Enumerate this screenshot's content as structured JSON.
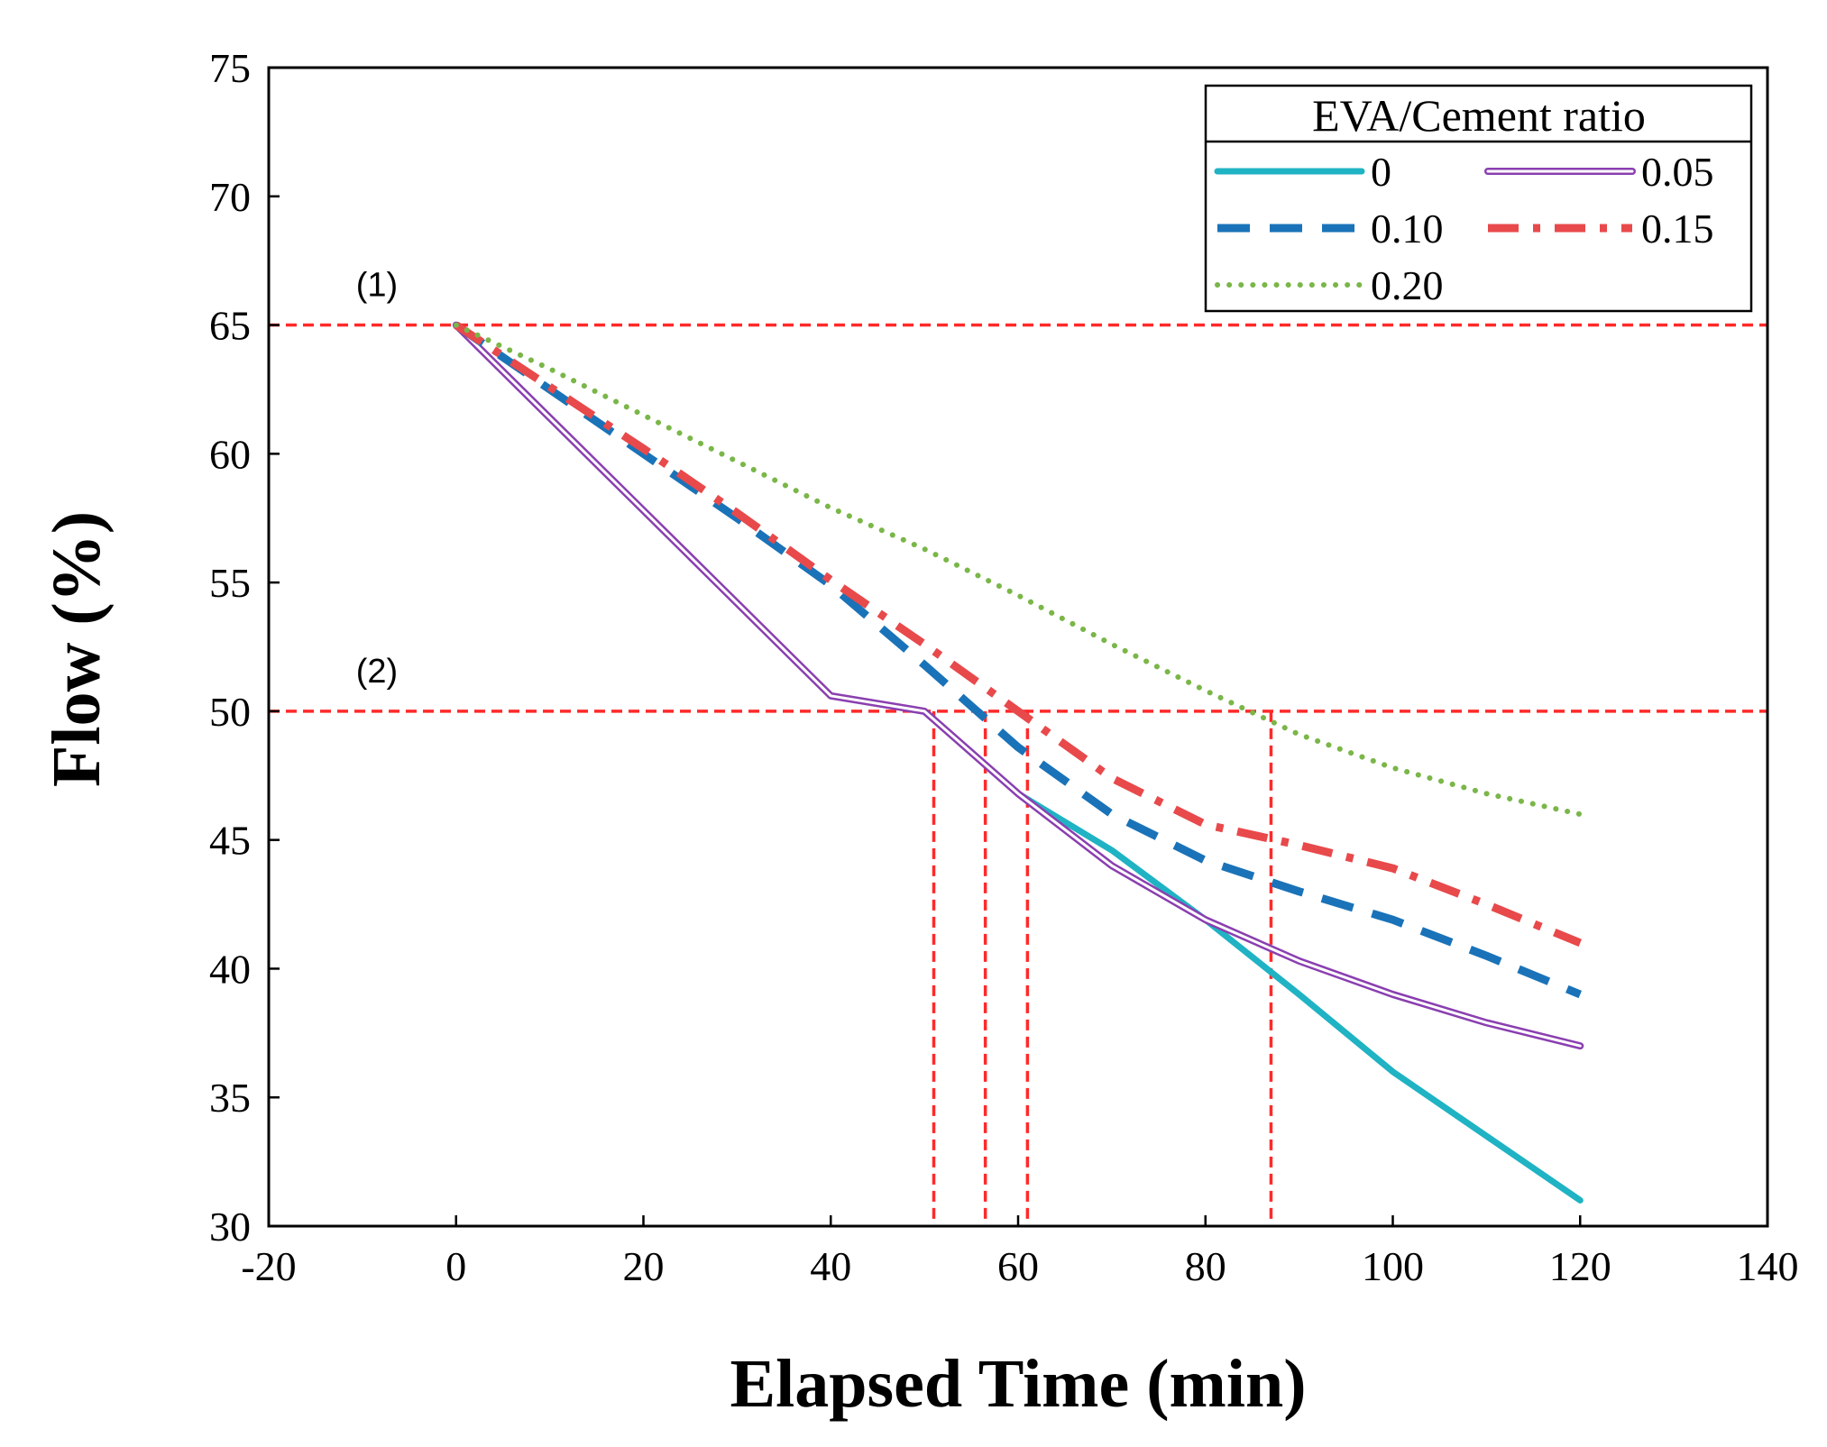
{
  "chart_data": {
    "type": "line",
    "xlabel": "Elapsed Time (min)",
    "ylabel": "Flow (%)",
    "xlim": [
      -20,
      140
    ],
    "ylim": [
      30,
      75
    ],
    "xticks": [
      -20,
      0,
      20,
      40,
      60,
      80,
      100,
      120,
      140
    ],
    "yticks": [
      30,
      35,
      40,
      45,
      50,
      55,
      60,
      65,
      70,
      75
    ],
    "grid": false,
    "legend": {
      "title": "EVA/Cement  ratio",
      "position": "top-right"
    },
    "series": [
      {
        "name": "0",
        "color": "#1fb3c4",
        "style": "solid",
        "x": [
          0,
          10,
          20,
          30,
          40,
          50,
          60,
          70,
          80,
          90,
          100,
          110,
          120
        ],
        "y": [
          65,
          61.4,
          57.8,
          54.2,
          50.6,
          50.0,
          46.8,
          44.6,
          41.9,
          39.0,
          36.0,
          33.5,
          31.0
        ]
      },
      {
        "name": "0.05",
        "color": "#8a3fb0",
        "style": "double",
        "x": [
          0,
          10,
          20,
          30,
          40,
          50,
          60,
          70,
          80,
          90,
          100,
          110,
          120
        ],
        "y": [
          65,
          61.4,
          57.8,
          54.2,
          50.6,
          50.0,
          46.8,
          44.0,
          41.9,
          40.3,
          39.0,
          37.9,
          37.0
        ]
      },
      {
        "name": "0.10",
        "color": "#1a73b8",
        "style": "dashed",
        "x": [
          0,
          10,
          20,
          30,
          40,
          50,
          60,
          70,
          80,
          90,
          100,
          110,
          120
        ],
        "y": [
          65,
          62.5,
          60.0,
          57.5,
          54.9,
          51.8,
          48.6,
          46.0,
          44.2,
          43.0,
          41.9,
          40.5,
          39.0
        ]
      },
      {
        "name": "0.15",
        "color": "#e8494b",
        "style": "dash-dot",
        "x": [
          0,
          10,
          20,
          30,
          40,
          50,
          60,
          70,
          80,
          90,
          100,
          110,
          120
        ],
        "y": [
          65,
          62.6,
          60.2,
          57.7,
          55.1,
          52.6,
          50.0,
          47.4,
          45.6,
          44.8,
          43.9,
          42.5,
          41.0
        ]
      },
      {
        "name": "0.20",
        "color": "#7ab648",
        "style": "dotted",
        "x": [
          0,
          10,
          20,
          30,
          40,
          50,
          60,
          70,
          80,
          90,
          100,
          110,
          120
        ],
        "y": [
          65,
          63.3,
          61.5,
          59.7,
          57.9,
          56.3,
          54.5,
          52.6,
          50.8,
          49.1,
          47.8,
          46.8,
          46.0
        ]
      }
    ],
    "reference_lines": {
      "color": "#ff2a2a",
      "horizontal": [
        {
          "label": "(1)",
          "y": 65
        },
        {
          "label": "(2)",
          "y": 50
        }
      ],
      "vertical": [
        {
          "x": 51,
          "y_top": 50
        },
        {
          "x": 56.5,
          "y_top": 50
        },
        {
          "x": 61,
          "y_top": 50
        },
        {
          "x": 87,
          "y_top": 50
        }
      ]
    }
  }
}
